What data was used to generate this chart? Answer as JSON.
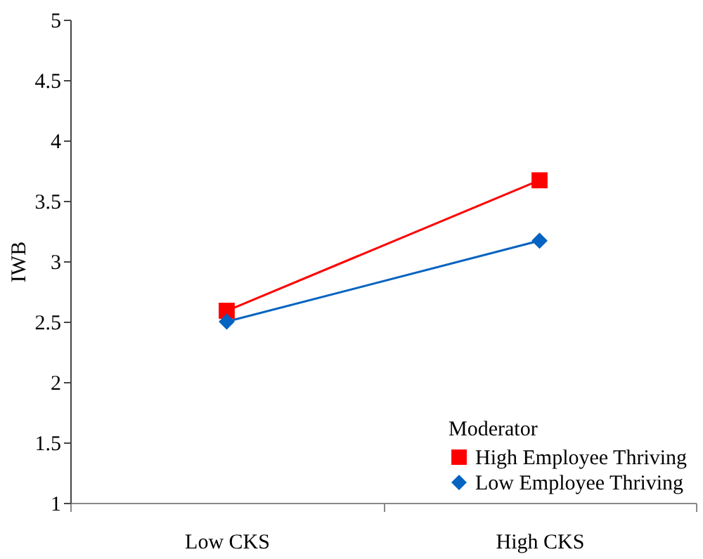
{
  "chart_data": {
    "type": "line",
    "ylabel": "IWB",
    "legend_title": "Moderator",
    "categories": [
      "Low CKS",
      "High CKS"
    ],
    "series": [
      {
        "name": "High Employee Thriving",
        "color": "#ff0000",
        "marker": "square",
        "values": [
          2.59,
          3.67
        ]
      },
      {
        "name": "Low Employee Thriving",
        "color": "#0563c1",
        "marker": "diamond",
        "values": [
          2.5,
          3.17
        ]
      }
    ],
    "ylim": [
      1,
      5
    ],
    "yticks": [
      1,
      1.5,
      2,
      2.5,
      3,
      3.5,
      4,
      4.5,
      5
    ],
    "grid": false,
    "legend": "bottom right"
  }
}
